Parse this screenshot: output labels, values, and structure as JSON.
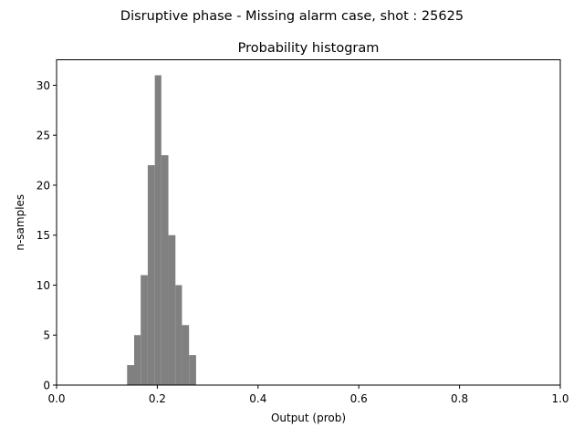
{
  "chart_data": {
    "type": "bar",
    "suptitle": "Disruptive phase - Missing alarm case, shot : 25625",
    "title": "Probability histogram",
    "xlabel": "Output (prob)",
    "ylabel": "n-samples",
    "xlim": [
      0.0,
      1.0
    ],
    "ylim": [
      0,
      32.55
    ],
    "xticks": [
      0.0,
      0.2,
      0.4,
      0.6,
      0.8,
      1.0
    ],
    "xtick_labels": [
      "0.0",
      "0.2",
      "0.4",
      "0.6",
      "0.8",
      "1.0"
    ],
    "yticks": [
      0,
      5,
      10,
      15,
      20,
      25,
      30
    ],
    "ytick_labels": [
      "0",
      "5",
      "10",
      "15",
      "20",
      "25",
      "30"
    ],
    "grid": false,
    "bar_color": "#808080",
    "bins": [
      {
        "x0": 0.14,
        "x1": 0.154,
        "count": 2
      },
      {
        "x0": 0.154,
        "x1": 0.167,
        "count": 5
      },
      {
        "x0": 0.167,
        "x1": 0.181,
        "count": 11
      },
      {
        "x0": 0.181,
        "x1": 0.195,
        "count": 22
      },
      {
        "x0": 0.195,
        "x1": 0.208,
        "count": 31
      },
      {
        "x0": 0.208,
        "x1": 0.222,
        "count": 23
      },
      {
        "x0": 0.222,
        "x1": 0.236,
        "count": 15
      },
      {
        "x0": 0.236,
        "x1": 0.249,
        "count": 10
      },
      {
        "x0": 0.249,
        "x1": 0.263,
        "count": 6
      },
      {
        "x0": 0.263,
        "x1": 0.277,
        "count": 3
      }
    ]
  }
}
